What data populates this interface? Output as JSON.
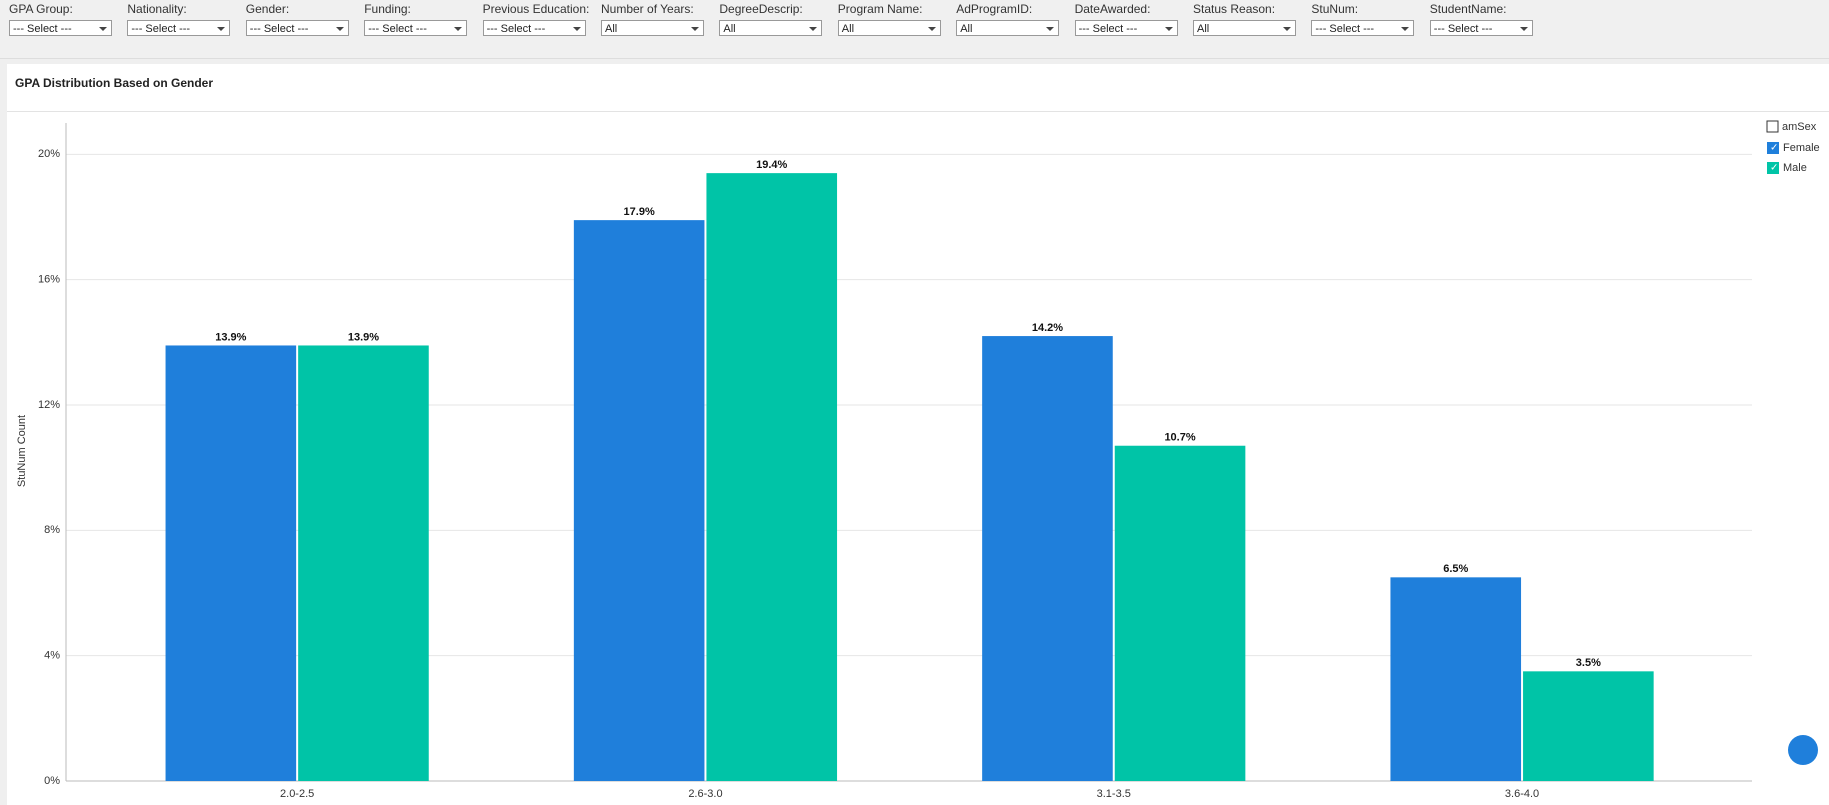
{
  "filters": [
    {
      "label": "GPA Group:",
      "value": "--- Select ---"
    },
    {
      "label": "Nationality:",
      "value": "--- Select ---"
    },
    {
      "label": "Gender:",
      "value": "--- Select ---"
    },
    {
      "label": "Funding:",
      "value": "--- Select ---"
    },
    {
      "label": "Previous Education:",
      "value": "--- Select ---"
    },
    {
      "label": "Number of Years:",
      "value": "All"
    },
    {
      "label": "DegreeDescrip:",
      "value": "All"
    },
    {
      "label": "Program Name:",
      "value": "All"
    },
    {
      "label": "AdProgramID:",
      "value": "All"
    },
    {
      "label": "DateAwarded:",
      "value": "--- Select ---"
    },
    {
      "label": "Status Reason:",
      "value": "All"
    },
    {
      "label": "StuNum:",
      "value": "--- Select ---"
    },
    {
      "label": "StudentName:",
      "value": "--- Select ---"
    }
  ],
  "chart_data": {
    "type": "bar",
    "title": "GPA Distribution Based on Gender",
    "y_label": "StuNum Count",
    "legend_title": "amSex",
    "categories": [
      "2.0-2.5",
      "2.6-3.0",
      "3.1-3.5",
      "3.6-4.0"
    ],
    "series": [
      {
        "name": "Female",
        "color": "#1f7fdb",
        "values": [
          13.9,
          17.9,
          14.2,
          6.5
        ],
        "value_labels": [
          "13.9%",
          "17.9%",
          "14.2%",
          "6.5%"
        ]
      },
      {
        "name": "Male",
        "color": "#00c4a7",
        "values": [
          13.9,
          19.4,
          10.7,
          3.5
        ],
        "value_labels": [
          "13.9%",
          "19.4%",
          "10.7%",
          "3.5%"
        ]
      }
    ],
    "ylim": [
      0,
      21
    ],
    "yticks": [
      {
        "value": 0,
        "label": "0%"
      },
      {
        "value": 4,
        "label": "4%"
      },
      {
        "value": 8,
        "label": "8%"
      },
      {
        "value": 12,
        "label": "12%"
      },
      {
        "value": 16,
        "label": "16%"
      },
      {
        "value": 20,
        "label": "20%"
      }
    ],
    "grid": true
  }
}
